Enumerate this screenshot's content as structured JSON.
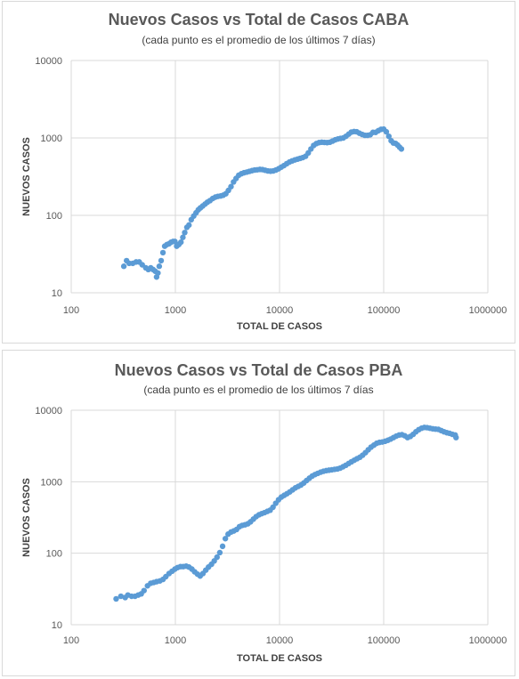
{
  "chart_data": [
    {
      "type": "scatter",
      "title": "Nuevos Casos vs Total de Casos CABA",
      "subtitle": "(cada punto es el promedio de los últimos 7 días)",
      "xlabel": "TOTAL DE CASOS",
      "ylabel": "NUEVOS CASOS",
      "xscale": "log",
      "yscale": "log",
      "xlim": [
        100,
        1000000
      ],
      "ylim": [
        10,
        10000
      ],
      "xticks": [
        "100",
        "1000",
        "10000",
        "100000",
        "1000000"
      ],
      "yticks": [
        "10",
        "100",
        "1000",
        "10000"
      ],
      "grid": "vertical and horizontal",
      "color": "#5b9bd5",
      "points": [
        [
          320,
          22
        ],
        [
          340,
          26
        ],
        [
          360,
          24
        ],
        [
          390,
          24
        ],
        [
          420,
          25
        ],
        [
          450,
          25
        ],
        [
          480,
          23
        ],
        [
          520,
          21
        ],
        [
          550,
          20
        ],
        [
          580,
          21
        ],
        [
          610,
          20
        ],
        [
          640,
          19
        ],
        [
          660,
          16
        ],
        [
          680,
          18
        ],
        [
          700,
          22
        ],
        [
          730,
          26
        ],
        [
          760,
          33
        ],
        [
          790,
          40
        ],
        [
          830,
          42
        ],
        [
          870,
          43
        ],
        [
          910,
          45
        ],
        [
          950,
          46
        ],
        [
          990,
          46
        ],
        [
          1030,
          40
        ],
        [
          1080,
          42
        ],
        [
          1130,
          45
        ],
        [
          1180,
          52
        ],
        [
          1230,
          60
        ],
        [
          1290,
          70
        ],
        [
          1350,
          75
        ],
        [
          1420,
          88
        ],
        [
          1500,
          98
        ],
        [
          1580,
          108
        ],
        [
          1660,
          118
        ],
        [
          1740,
          125
        ],
        [
          1830,
          132
        ],
        [
          1930,
          140
        ],
        [
          2030,
          148
        ],
        [
          2150,
          155
        ],
        [
          2280,
          165
        ],
        [
          2420,
          172
        ],
        [
          2560,
          176
        ],
        [
          2720,
          178
        ],
        [
          2880,
          182
        ],
        [
          3050,
          190
        ],
        [
          3230,
          210
        ],
        [
          3420,
          235
        ],
        [
          3620,
          270
        ],
        [
          3830,
          300
        ],
        [
          4060,
          330
        ],
        [
          4300,
          345
        ],
        [
          4560,
          355
        ],
        [
          4840,
          362
        ],
        [
          5130,
          370
        ],
        [
          5440,
          378
        ],
        [
          5760,
          385
        ],
        [
          6110,
          388
        ],
        [
          6480,
          392
        ],
        [
          6870,
          390
        ],
        [
          7290,
          382
        ],
        [
          7730,
          375
        ],
        [
          8200,
          372
        ],
        [
          8700,
          375
        ],
        [
          9230,
          385
        ],
        [
          9800,
          400
        ],
        [
          10400,
          420
        ],
        [
          11040,
          440
        ],
        [
          11720,
          465
        ],
        [
          12440,
          488
        ],
        [
          13200,
          505
        ],
        [
          14010,
          520
        ],
        [
          14870,
          532
        ],
        [
          15780,
          545
        ],
        [
          16750,
          558
        ],
        [
          17780,
          580
        ],
        [
          18870,
          640
        ],
        [
          20030,
          720
        ],
        [
          21260,
          800
        ],
        [
          22560,
          845
        ],
        [
          23950,
          870
        ],
        [
          25420,
          880
        ],
        [
          26980,
          875
        ],
        [
          28630,
          870
        ],
        [
          30400,
          880
        ],
        [
          32260,
          910
        ],
        [
          34240,
          945
        ],
        [
          36340,
          970
        ],
        [
          38570,
          985
        ],
        [
          40940,
          1000
        ],
        [
          43460,
          1050
        ],
        [
          46130,
          1120
        ],
        [
          48960,
          1190
        ],
        [
          51970,
          1210
        ],
        [
          55160,
          1200
        ],
        [
          58550,
          1150
        ],
        [
          62140,
          1110
        ],
        [
          65960,
          1080
        ],
        [
          70010,
          1080
        ],
        [
          74310,
          1100
        ],
        [
          78870,
          1180
        ],
        [
          83710,
          1180
        ],
        [
          88850,
          1240
        ],
        [
          94310,
          1290
        ],
        [
          100000,
          1300
        ],
        [
          106000,
          1200
        ],
        [
          112000,
          1050
        ],
        [
          118000,
          920
        ],
        [
          124000,
          860
        ],
        [
          130000,
          850
        ],
        [
          136000,
          810
        ],
        [
          142000,
          760
        ],
        [
          148000,
          720
        ]
      ]
    },
    {
      "type": "scatter",
      "title": "Nuevos Casos vs Total de Casos PBA",
      "subtitle": "(cada punto es el promedio de los últimos 7 días",
      "xlabel": "TOTAL DE CASOS",
      "ylabel": "NUEVOS CASOS",
      "xscale": "log",
      "yscale": "log",
      "xlim": [
        100,
        1000000
      ],
      "ylim": [
        10,
        10000
      ],
      "xticks": [
        "100",
        "1000",
        "10000",
        "100000",
        "1000000"
      ],
      "yticks": [
        "10",
        "100",
        "1000",
        "10000"
      ],
      "grid": "vertical and horizontal",
      "color": "#5b9bd5",
      "points": [
        [
          270,
          23
        ],
        [
          300,
          25
        ],
        [
          330,
          24
        ],
        [
          350,
          26
        ],
        [
          380,
          25
        ],
        [
          410,
          25
        ],
        [
          440,
          26
        ],
        [
          470,
          27
        ],
        [
          500,
          30
        ],
        [
          540,
          35
        ],
        [
          580,
          38
        ],
        [
          620,
          39
        ],
        [
          660,
          40
        ],
        [
          710,
          41
        ],
        [
          760,
          43
        ],
        [
          810,
          47
        ],
        [
          870,
          52
        ],
        [
          930,
          56
        ],
        [
          990,
          60
        ],
        [
          1050,
          63
        ],
        [
          1120,
          65
        ],
        [
          1190,
          65
        ],
        [
          1270,
          66
        ],
        [
          1350,
          64
        ],
        [
          1440,
          60
        ],
        [
          1530,
          55
        ],
        [
          1630,
          51
        ],
        [
          1730,
          48
        ],
        [
          1840,
          52
        ],
        [
          1960,
          58
        ],
        [
          2080,
          64
        ],
        [
          2220,
          70
        ],
        [
          2360,
          78
        ],
        [
          2510,
          88
        ],
        [
          2670,
          102
        ],
        [
          2840,
          125
        ],
        [
          3020,
          160
        ],
        [
          3210,
          185
        ],
        [
          3420,
          198
        ],
        [
          3640,
          205
        ],
        [
          3870,
          215
        ],
        [
          4120,
          235
        ],
        [
          4380,
          245
        ],
        [
          4660,
          250
        ],
        [
          4960,
          258
        ],
        [
          5270,
          275
        ],
        [
          5610,
          300
        ],
        [
          5970,
          325
        ],
        [
          6350,
          345
        ],
        [
          6750,
          358
        ],
        [
          7180,
          370
        ],
        [
          7640,
          385
        ],
        [
          8130,
          400
        ],
        [
          8650,
          440
        ],
        [
          9200,
          500
        ],
        [
          9790,
          560
        ],
        [
          10400,
          610
        ],
        [
          11080,
          645
        ],
        [
          11790,
          680
        ],
        [
          12540,
          720
        ],
        [
          13340,
          770
        ],
        [
          14190,
          820
        ],
        [
          15100,
          860
        ],
        [
          16070,
          900
        ],
        [
          17090,
          960
        ],
        [
          18180,
          1040
        ],
        [
          19350,
          1120
        ],
        [
          20580,
          1200
        ],
        [
          21900,
          1260
        ],
        [
          23300,
          1310
        ],
        [
          24790,
          1360
        ],
        [
          26370,
          1400
        ],
        [
          28060,
          1430
        ],
        [
          29850,
          1450
        ],
        [
          31760,
          1470
        ],
        [
          33790,
          1490
        ],
        [
          35960,
          1510
        ],
        [
          38260,
          1550
        ],
        [
          40700,
          1620
        ],
        [
          43310,
          1700
        ],
        [
          46080,
          1800
        ],
        [
          49020,
          1900
        ],
        [
          52160,
          2000
        ],
        [
          55490,
          2100
        ],
        [
          59040,
          2200
        ],
        [
          62820,
          2350
        ],
        [
          66840,
          2550
        ],
        [
          71110,
          2800
        ],
        [
          75660,
          3050
        ],
        [
          80500,
          3250
        ],
        [
          85650,
          3450
        ],
        [
          91130,
          3550
        ],
        [
          96960,
          3600
        ],
        [
          103160,
          3680
        ],
        [
          109760,
          3800
        ],
        [
          116780,
          3950
        ],
        [
          124250,
          4150
        ],
        [
          132200,
          4350
        ],
        [
          140660,
          4500
        ],
        [
          149660,
          4550
        ],
        [
          159240,
          4400
        ],
        [
          169430,
          4150
        ],
        [
          180270,
          4300
        ],
        [
          191800,
          4600
        ],
        [
          204080,
          5000
        ],
        [
          217140,
          5350
        ],
        [
          231030,
          5600
        ],
        [
          245810,
          5750
        ],
        [
          261540,
          5700
        ],
        [
          278280,
          5600
        ],
        [
          296090,
          5500
        ],
        [
          315040,
          5450
        ],
        [
          335200,
          5400
        ],
        [
          356650,
          5200
        ],
        [
          379470,
          5000
        ],
        [
          403760,
          4850
        ],
        [
          429600,
          4750
        ],
        [
          457090,
          4600
        ],
        [
          486340,
          4500
        ],
        [
          495000,
          4150
        ]
      ]
    }
  ]
}
